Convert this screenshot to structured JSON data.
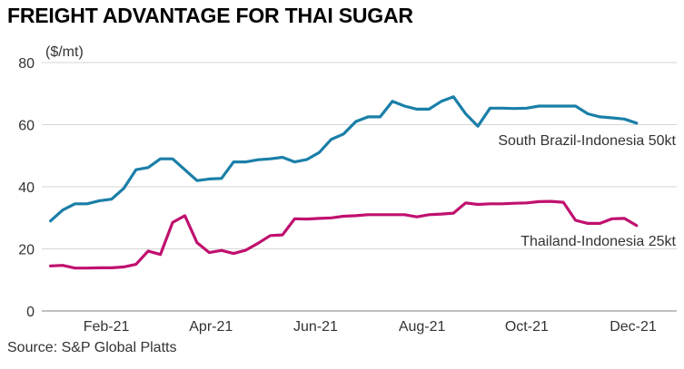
{
  "title": "FREIGHT ADVANTAGE FOR THAI SUGAR",
  "source": "Source: S&P Global Platts",
  "chart_data": {
    "type": "line",
    "ylabel": "($/mt)",
    "ylim": [
      0,
      80
    ],
    "yticks": [
      0,
      20,
      40,
      60,
      80
    ],
    "xlim": [
      "2021-01-01",
      "2021-12-31"
    ],
    "xticks": [
      {
        "date": "2021-02-07",
        "label": "Feb-21"
      },
      {
        "date": "2021-04-08",
        "label": "Apr-21"
      },
      {
        "date": "2021-06-07",
        "label": "Jun-21"
      },
      {
        "date": "2021-08-07",
        "label": "Aug-21"
      },
      {
        "date": "2021-10-06",
        "label": "Oct-21"
      },
      {
        "date": "2021-12-06",
        "label": "Dec-21"
      }
    ],
    "grid": "horizontal",
    "series": [
      {
        "name": "South Brazil-Indonesia 50kt",
        "color": "#1a7fa8",
        "points": [
          [
            "2021-01-06",
            29
          ],
          [
            "2021-01-13",
            32.5
          ],
          [
            "2021-01-20",
            34.5
          ],
          [
            "2021-01-27",
            34.5
          ],
          [
            "2021-02-03",
            35.5
          ],
          [
            "2021-02-10",
            36
          ],
          [
            "2021-02-17",
            39.5
          ],
          [
            "2021-02-24",
            45.5
          ],
          [
            "2021-03-03",
            46.2
          ],
          [
            "2021-03-10",
            49
          ],
          [
            "2021-03-17",
            49
          ],
          [
            "2021-03-24",
            45.5
          ],
          [
            "2021-03-31",
            42
          ],
          [
            "2021-04-07",
            42.5
          ],
          [
            "2021-04-14",
            42.7
          ],
          [
            "2021-04-21",
            48
          ],
          [
            "2021-04-28",
            48
          ],
          [
            "2021-05-05",
            48.7
          ],
          [
            "2021-05-12",
            49
          ],
          [
            "2021-05-19",
            49.5
          ],
          [
            "2021-05-26",
            48
          ],
          [
            "2021-06-02",
            48.8
          ],
          [
            "2021-06-09",
            51
          ],
          [
            "2021-06-16",
            55.3
          ],
          [
            "2021-06-23",
            57
          ],
          [
            "2021-06-30",
            61
          ],
          [
            "2021-07-07",
            62.5
          ],
          [
            "2021-07-14",
            62.5
          ],
          [
            "2021-07-21",
            67.5
          ],
          [
            "2021-07-28",
            66
          ],
          [
            "2021-08-04",
            65
          ],
          [
            "2021-08-11",
            65
          ],
          [
            "2021-08-18",
            67.5
          ],
          [
            "2021-08-25",
            69
          ],
          [
            "2021-09-01",
            63.5
          ],
          [
            "2021-09-08",
            59.5
          ],
          [
            "2021-09-15",
            65.3
          ],
          [
            "2021-09-22",
            65.3
          ],
          [
            "2021-09-29",
            65.2
          ],
          [
            "2021-10-06",
            65.3
          ],
          [
            "2021-10-13",
            66
          ],
          [
            "2021-10-20",
            66
          ],
          [
            "2021-10-27",
            66
          ],
          [
            "2021-11-03",
            66
          ],
          [
            "2021-11-10",
            63.5
          ],
          [
            "2021-11-17",
            62.5
          ],
          [
            "2021-11-24",
            62.2
          ],
          [
            "2021-12-01",
            61.8
          ],
          [
            "2021-12-08",
            60.5
          ]
        ]
      },
      {
        "name": "Thailand-Indonesia 25kt",
        "color": "#c0106e",
        "points": [
          [
            "2021-01-06",
            14.5
          ],
          [
            "2021-01-13",
            14.7
          ],
          [
            "2021-01-20",
            13.8
          ],
          [
            "2021-01-27",
            13.8
          ],
          [
            "2021-02-03",
            13.9
          ],
          [
            "2021-02-10",
            13.9
          ],
          [
            "2021-02-17",
            14.2
          ],
          [
            "2021-02-24",
            15
          ],
          [
            "2021-03-03",
            19.3
          ],
          [
            "2021-03-10",
            18.2
          ],
          [
            "2021-03-17",
            28.5
          ],
          [
            "2021-03-24",
            30.7
          ],
          [
            "2021-03-31",
            22
          ],
          [
            "2021-04-07",
            18.8
          ],
          [
            "2021-04-14",
            19.5
          ],
          [
            "2021-04-21",
            18.5
          ],
          [
            "2021-04-28",
            19.6
          ],
          [
            "2021-05-05",
            21.8
          ],
          [
            "2021-05-12",
            24.3
          ],
          [
            "2021-05-19",
            24.5
          ],
          [
            "2021-05-26",
            29.7
          ],
          [
            "2021-06-02",
            29.6
          ],
          [
            "2021-06-09",
            29.8
          ],
          [
            "2021-06-16",
            30
          ],
          [
            "2021-06-23",
            30.5
          ],
          [
            "2021-06-30",
            30.7
          ],
          [
            "2021-07-07",
            31
          ],
          [
            "2021-07-14",
            31
          ],
          [
            "2021-07-21",
            31
          ],
          [
            "2021-07-28",
            31
          ],
          [
            "2021-08-04",
            30.3
          ],
          [
            "2021-08-11",
            31
          ],
          [
            "2021-08-18",
            31.2
          ],
          [
            "2021-08-25",
            31.5
          ],
          [
            "2021-09-01",
            34.8
          ],
          [
            "2021-09-08",
            34.3
          ],
          [
            "2021-09-15",
            34.5
          ],
          [
            "2021-09-22",
            34.5
          ],
          [
            "2021-09-29",
            34.7
          ],
          [
            "2021-10-06",
            34.8
          ],
          [
            "2021-10-13",
            35.2
          ],
          [
            "2021-10-20",
            35.3
          ],
          [
            "2021-10-27",
            35
          ],
          [
            "2021-11-03",
            29.2
          ],
          [
            "2021-11-10",
            28.2
          ],
          [
            "2021-11-17",
            28.2
          ],
          [
            "2021-11-24",
            29.7
          ],
          [
            "2021-12-01",
            29.8
          ],
          [
            "2021-12-08",
            27.5
          ]
        ]
      }
    ]
  }
}
